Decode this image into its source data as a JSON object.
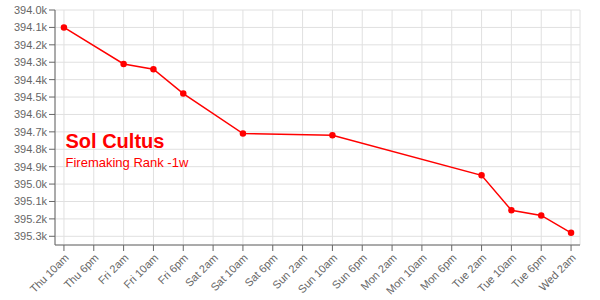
{
  "chart_data": {
    "type": "line",
    "title": "Sol Cultus",
    "subtitle": "Firemaking Rank -1w",
    "x": [
      0,
      2,
      3,
      4,
      6,
      9,
      14,
      15,
      16,
      17
    ],
    "values": [
      394100,
      394310,
      394340,
      394480,
      394710,
      394720,
      394950,
      395150,
      395180,
      395280
    ],
    "color": "#ff0000",
    "marker": "circle",
    "grid": true,
    "xlim": [
      -0.3,
      17.3
    ],
    "xticks": [
      {
        "value": 0,
        "label": "Thu 10am"
      },
      {
        "value": 1,
        "label": "Thu 6pm"
      },
      {
        "value": 2,
        "label": "Fri 2am"
      },
      {
        "value": 3,
        "label": "Fri 10am"
      },
      {
        "value": 4,
        "label": "Fri 6pm"
      },
      {
        "value": 5,
        "label": "Sat 2am"
      },
      {
        "value": 6,
        "label": "Sat 10am"
      },
      {
        "value": 7,
        "label": "Sat 6pm"
      },
      {
        "value": 8,
        "label": "Sun 2am"
      },
      {
        "value": 9,
        "label": "Sun 10am"
      },
      {
        "value": 10,
        "label": "Sun 6pm"
      },
      {
        "value": 11,
        "label": "Mon 2am"
      },
      {
        "value": 12,
        "label": "Mon 10am"
      },
      {
        "value": 13,
        "label": "Mon 6pm"
      },
      {
        "value": 14,
        "label": "Tue 2am"
      },
      {
        "value": 15,
        "label": "Tue 10am"
      },
      {
        "value": 16,
        "label": "Tue 6pm"
      },
      {
        "value": 17,
        "label": "Wed 2am"
      }
    ],
    "ylim": [
      395350,
      394000
    ],
    "yticks": [
      {
        "value": 394000,
        "label": "394.0k"
      },
      {
        "value": 394100,
        "label": "394.1k"
      },
      {
        "value": 394200,
        "label": "394.2k"
      },
      {
        "value": 394300,
        "label": "394.3k"
      },
      {
        "value": 394400,
        "label": "394.4k"
      },
      {
        "value": 394500,
        "label": "394.5k"
      },
      {
        "value": 394600,
        "label": "394.6k"
      },
      {
        "value": 394700,
        "label": "394.7k"
      },
      {
        "value": 394800,
        "label": "394.8k"
      },
      {
        "value": 394900,
        "label": "394.9k"
      },
      {
        "value": 395000,
        "label": "395.0k"
      },
      {
        "value": 395100,
        "label": "395.1k"
      },
      {
        "value": 395200,
        "label": "395.2k"
      },
      {
        "value": 395300,
        "label": "395.3k"
      }
    ]
  }
}
